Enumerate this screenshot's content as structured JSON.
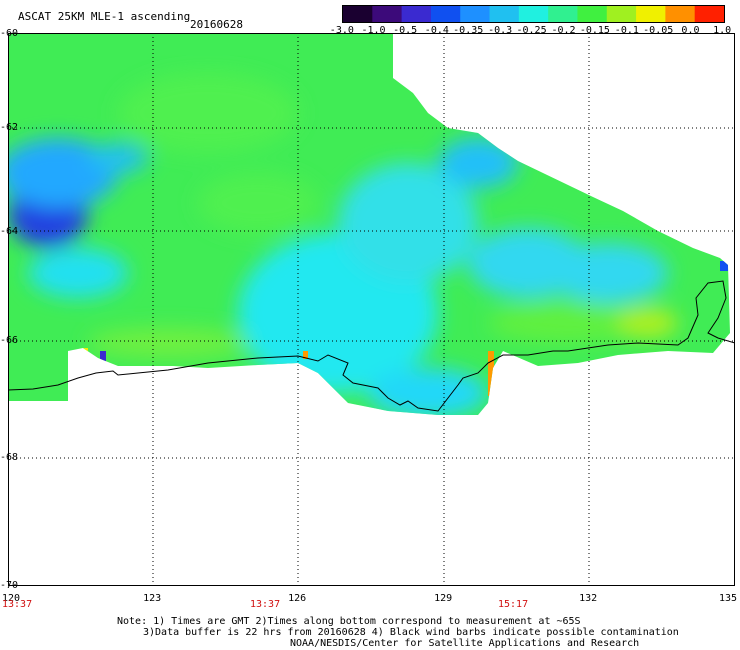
{
  "header": {
    "product": "ASCAT 25KM MLE-1 ascending",
    "date": "20160628"
  },
  "colorbar": {
    "ticks": [
      "-3.0",
      "-1.0",
      "-0.5",
      "-0.4",
      "-0.35",
      "-0.3",
      "-0.25",
      "-0.2",
      "-0.15",
      "-0.1",
      "-0.05",
      "0.0",
      "1.0"
    ],
    "colors": [
      "#1a0030",
      "#3c0a7a",
      "#3a2ad0",
      "#1050f0",
      "#1e90ff",
      "#20c0f0",
      "#20f0e0",
      "#30f090",
      "#40f040",
      "#a0f020",
      "#f0f000",
      "#ff9000",
      "#ff2000"
    ]
  },
  "map": {
    "lon_range": [
      120,
      135
    ],
    "lat_range": [
      -70,
      -60
    ],
    "lon_ticks": [
      "120",
      "123",
      "126",
      "129",
      "132",
      "135"
    ],
    "lat_ticks": [
      "-60",
      "-62",
      "-64",
      "-66",
      "-68",
      "-70"
    ],
    "time_labels": [
      "13:37",
      "13:37",
      "15:17"
    ],
    "grid": "dotted"
  },
  "notes": {
    "line1": "Note: 1) Times are GMT 2)Times along bottom correspond to measurement at ~65S",
    "line2": "3)Data buffer is 22 hrs from 20160628 4) Black wind barbs indicate possible contamination",
    "line3": "NOAA/NESDIS/Center for Satellite Applications and Research"
  }
}
